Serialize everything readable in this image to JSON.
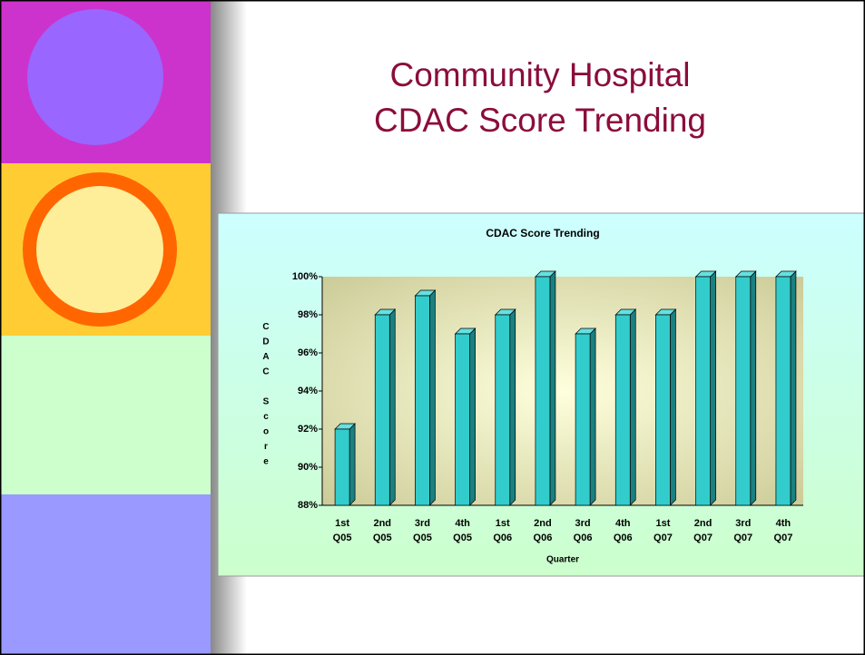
{
  "slide_title": [
    "Community Hospital",
    "CDAC Score Trending"
  ],
  "chart_data": {
    "type": "bar",
    "title": "CDAC Score Trending",
    "x_label": "Quarter",
    "y_label": "CDAC Score",
    "categories": [
      "1st Q05",
      "2nd Q05",
      "3rd Q05",
      "4th Q05",
      "1st Q06",
      "2nd Q06",
      "3rd Q06",
      "4th Q06",
      "1st Q07",
      "2nd Q07",
      "3rd Q07",
      "4th Q07"
    ],
    "values": [
      92,
      98,
      99,
      97,
      98,
      100,
      97,
      98,
      98,
      100,
      100,
      100
    ],
    "color": "#33cccc",
    "ylim": [
      88,
      100
    ],
    "yticks": [
      {
        "value": 88,
        "label": "88%"
      },
      {
        "value": 90,
        "label": "90%"
      },
      {
        "value": 92,
        "label": "92%"
      },
      {
        "value": 94,
        "label": "94%"
      },
      {
        "value": 96,
        "label": "96%"
      },
      {
        "value": 98,
        "label": "98%"
      },
      {
        "value": 100,
        "label": "100%"
      }
    ]
  }
}
